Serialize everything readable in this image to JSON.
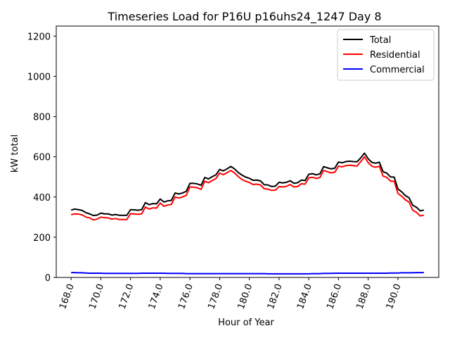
{
  "chart_data": {
    "type": "line",
    "title": "Timeseries Load for P16U p16uhs24_1247  Day 8",
    "xlabel": "Hour of Year",
    "ylabel": "kW total",
    "xlim": [
      167.0,
      192.75
    ],
    "ylim": [
      0,
      1250
    ],
    "xticks": [
      168,
      170,
      172,
      174,
      176,
      178,
      180,
      182,
      184,
      186,
      188,
      190
    ],
    "xtick_labels": [
      "168.0",
      "170.0",
      "172.0",
      "174.0",
      "176.0",
      "178.0",
      "180.0",
      "182.0",
      "184.0",
      "186.0",
      "188.0",
      "190.0"
    ],
    "yticks": [
      0,
      200,
      400,
      600,
      800,
      1000,
      1200
    ],
    "ytick_labels": [
      "0",
      "200",
      "400",
      "600",
      "800",
      "1000",
      "1200"
    ],
    "legend_position": "top-right",
    "x_start": 168.0,
    "x_step": 0.25,
    "series": [
      {
        "name": "Total",
        "color": "#000000",
        "values": [
          335,
          340,
          337,
          333,
          322,
          316,
          308,
          310,
          320,
          316,
          316,
          310,
          313,
          309,
          309,
          309,
          337,
          336,
          334,
          337,
          372,
          362,
          367,
          366,
          390,
          375,
          381,
          383,
          420,
          415,
          420,
          428,
          468,
          468,
          465,
          458,
          497,
          490,
          501,
          510,
          537,
          530,
          540,
          552,
          540,
          522,
          509,
          499,
          493,
          483,
          484,
          480,
          461,
          460,
          452,
          454,
          473,
          470,
          473,
          481,
          468,
          471,
          484,
          482,
          513,
          516,
          510,
          515,
          551,
          545,
          540,
          543,
          574,
          570,
          576,
          578,
          576,
          575,
          595,
          618,
          590,
          572,
          568,
          573,
          526,
          519,
          500,
          499,
          440,
          426,
          407,
          396,
          359,
          349,
          331,
          335
        ]
      },
      {
        "name": "Residential",
        "color": "#ff0000",
        "values": [
          312,
          316,
          315,
          311,
          300,
          296,
          286,
          290,
          300,
          297,
          296,
          290,
          293,
          288,
          288,
          288,
          317,
          316,
          314,
          316,
          350,
          340,
          346,
          345,
          370,
          354,
          360,
          363,
          400,
          395,
          400,
          408,
          450,
          449,
          446,
          438,
          478,
          471,
          482,
          492,
          519,
          511,
          521,
          532,
          520,
          502,
          487,
          478,
          472,
          462,
          464,
          460,
          441,
          439,
          433,
          434,
          452,
          450,
          453,
          462,
          450,
          452,
          466,
          464,
          495,
          498,
          492,
          497,
          532,
          526,
          520,
          523,
          553,
          550,
          556,
          558,
          556,
          554,
          576,
          600,
          571,
          553,
          548,
          553,
          504,
          498,
          479,
          478,
          418,
          404,
          386,
          375,
          334,
          324,
          306,
          310
        ]
      },
      {
        "name": "Commercial",
        "color": "#0000ff",
        "values": [
          24,
          24,
          23,
          23,
          22,
          21,
          21,
          21,
          21,
          20,
          20,
          20,
          20,
          20,
          20,
          20,
          20,
          20,
          20,
          21,
          21,
          21,
          21,
          21,
          21,
          21,
          20,
          20,
          20,
          20,
          20,
          19,
          19,
          19,
          19,
          19,
          19,
          19,
          19,
          19,
          19,
          19,
          19,
          19,
          19,
          19,
          19,
          19,
          19,
          19,
          19,
          19,
          19,
          18,
          18,
          18,
          18,
          18,
          18,
          18,
          18,
          18,
          18,
          18,
          18,
          19,
          19,
          19,
          20,
          20,
          20,
          21,
          21,
          21,
          21,
          21,
          21,
          21,
          21,
          21,
          21,
          21,
          21,
          21,
          21,
          21,
          22,
          22,
          22,
          23,
          23,
          23,
          23,
          24,
          24,
          24
        ]
      }
    ]
  }
}
